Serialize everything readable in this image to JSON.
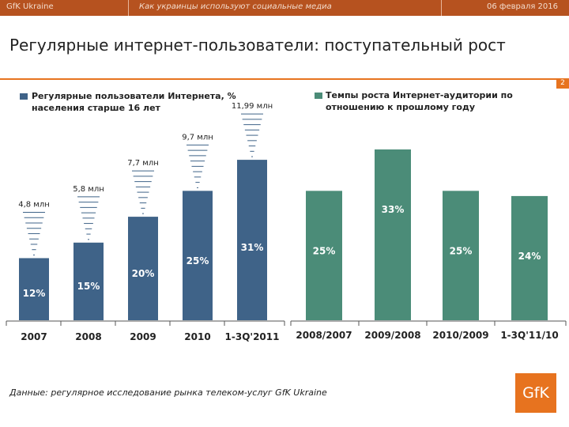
{
  "header": {
    "left": "GfK Ukraine",
    "middle": "Как украинцы используют социальные медиа",
    "right": "06 февраля 2016"
  },
  "title": "Регулярные интернет-пользователи: поступательный рост",
  "page_number": "2",
  "footnote": "Данные: регулярное исследование рынка телеком-услуг GfK Ukraine",
  "logo": "GfK",
  "colors": {
    "blue": "#3f6388",
    "green": "#4b8c78",
    "orange": "#e7731f",
    "header": "#b6521f"
  },
  "chart_data": [
    {
      "type": "bar",
      "legend": [
        "Регулярные пользователи Интернета, %",
        "населения старше 16 лет"
      ],
      "categories": [
        "2007",
        "2008",
        "2009",
        "2010",
        "1-3Q'2011"
      ],
      "values": [
        12,
        15,
        20,
        25,
        31
      ],
      "value_labels": [
        "12%",
        "15%",
        "20%",
        "25%",
        "31%"
      ],
      "annotations": [
        "4,8 млн",
        "5,8 млн",
        "7,7 млн",
        "9,7 млн",
        "11,99 млн"
      ],
      "ylim": [
        0,
        38
      ],
      "color": "#3f6388"
    },
    {
      "type": "bar",
      "legend": [
        "Темпы роста Интернет-аудитории по",
        "отношению к прошлому году"
      ],
      "categories": [
        "2008/2007",
        "2009/2008",
        "2010/2009",
        "1-3Q'11/10"
      ],
      "values": [
        25,
        33,
        25,
        24
      ],
      "value_labels": [
        "25%",
        "33%",
        "25%",
        "24%"
      ],
      "ylim": [
        0,
        38
      ],
      "color": "#4b8c78"
    }
  ]
}
